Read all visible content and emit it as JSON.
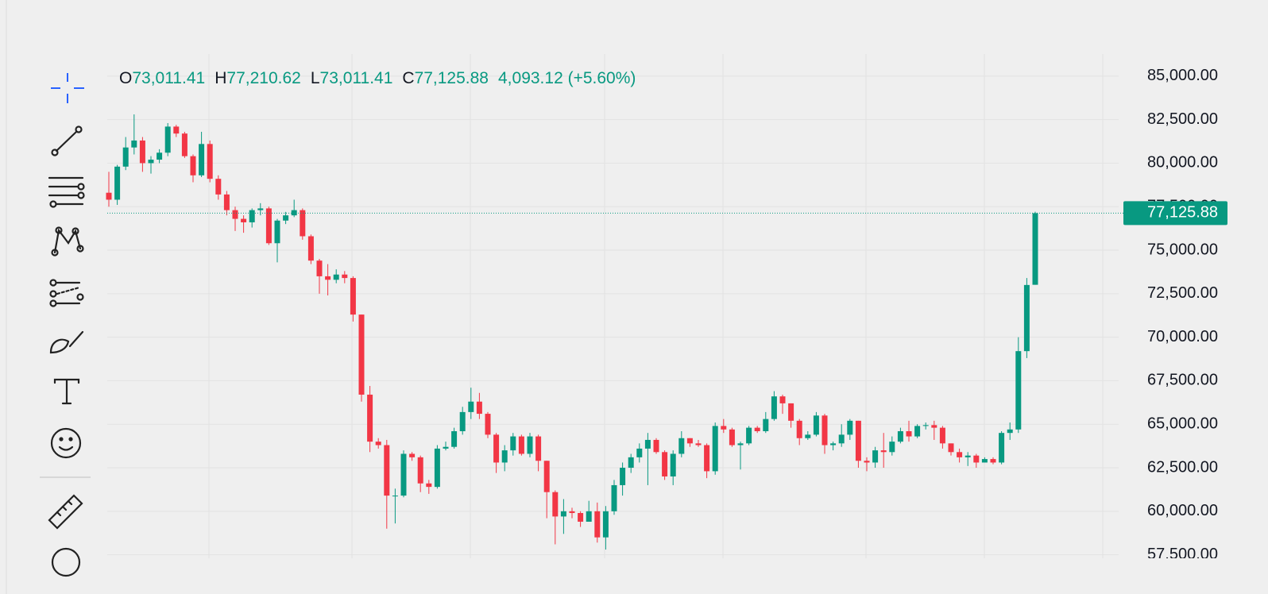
{
  "chart_data": {
    "type": "candlestick",
    "legend": {
      "open_label": "O",
      "open": "73,011.41",
      "high_label": "H",
      "high": "77,210.62",
      "low_label": "L",
      "low": "73,011.41",
      "close_label": "C",
      "close": "77,125.88",
      "change": "4,093.12 (+5.60%)"
    },
    "last_price_label": "77,125.88",
    "up_color": "#089981",
    "down_color": "#f23645",
    "ylim": [
      57300,
      86270
    ],
    "yticks": [
      {
        "value": 57500,
        "label": "57,500.00"
      },
      {
        "value": 60000,
        "label": "60,000.00"
      },
      {
        "value": 62500,
        "label": "62,500.00"
      },
      {
        "value": 65000,
        "label": "65,000.00"
      },
      {
        "value": 67500,
        "label": "67,500.00"
      },
      {
        "value": 70000,
        "label": "70,000.00"
      },
      {
        "value": 72500,
        "label": "72,500.00"
      },
      {
        "value": 75000,
        "label": "75,000.00"
      },
      {
        "value": 77500,
        "label": "77,500.00"
      },
      {
        "value": 80000,
        "label": "80,000.00"
      },
      {
        "value": 82500,
        "label": "82,500.00"
      },
      {
        "value": 85000,
        "label": "85,000.00"
      }
    ],
    "grid": true,
    "open": [
      78300,
      77900,
      79800,
      80900,
      81300,
      80000,
      80200,
      80600,
      82100,
      81700,
      80400,
      79300,
      81100,
      79100,
      78200,
      77300,
      76800,
      76600,
      77300,
      77400,
      75400,
      76700,
      77000,
      77300,
      75800,
      74400,
      73500,
      73300,
      73600,
      73400,
      71300,
      66700,
      64000,
      63800,
      60900,
      60900,
      63300,
      63100,
      61600,
      61400,
      63600,
      63700,
      64600,
      65700,
      66300,
      65600,
      64400,
      62800,
      63500,
      64300,
      63300,
      64300,
      62900,
      61100,
      59700,
      60000,
      59900,
      59400,
      60000,
      58500,
      60000,
      61500,
      62500,
      63100,
      63600,
      64100,
      63400,
      62000,
      63300,
      64200,
      63900,
      63800,
      62300,
      64900,
      64700,
      63800,
      63900,
      64800,
      64600,
      65300,
      66600,
      66200,
      65200,
      64200,
      64400,
      65500,
      63800,
      63900,
      64400,
      65200,
      62900,
      62800,
      63500,
      63400,
      64000,
      64600,
      64300,
      64900,
      64950,
      64800,
      63900,
      63400,
      63100,
      63200,
      62800,
      63000,
      62800,
      64500,
      64700,
      69200,
      73011.41
    ],
    "high": [
      79500,
      79900,
      81500,
      82800,
      81500,
      80400,
      80800,
      82300,
      82200,
      81800,
      80500,
      81800,
      81300,
      79300,
      78400,
      77500,
      77000,
      77400,
      77700,
      77500,
      76800,
      77200,
      77900,
      77400,
      75900,
      74500,
      74200,
      73900,
      73800,
      73500,
      71300,
      67200,
      64200,
      64100,
      61300,
      63500,
      63400,
      63200,
      61800,
      63800,
      64000,
      64800,
      66000,
      67100,
      66800,
      65700,
      64500,
      63800,
      64500,
      64400,
      64500,
      64400,
      62900,
      61200,
      60700,
      60200,
      60000,
      60600,
      60500,
      60300,
      61800,
      62800,
      63300,
      63900,
      64500,
      64200,
      63500,
      63500,
      64600,
      64200,
      64100,
      63900,
      65100,
      65300,
      64800,
      64000,
      64900,
      64900,
      65700,
      66900,
      66700,
      66200,
      65300,
      64600,
      65700,
      65600,
      64000,
      65000,
      65300,
      65200,
      63100,
      63700,
      64500,
      64300,
      64800,
      65200,
      65000,
      65100,
      65200,
      64900,
      63900,
      63600,
      63400,
      63300,
      63100,
      63100,
      64600,
      65100,
      70000,
      73400,
      77210.62
    ],
    "low": [
      77500,
      77600,
      79600,
      80500,
      79500,
      79400,
      80000,
      80400,
      81500,
      80300,
      78900,
      79200,
      78900,
      77900,
      77000,
      76100,
      76000,
      76300,
      77000,
      75300,
      74300,
      76500,
      76900,
      75600,
      74200,
      72500,
      72400,
      73100,
      73100,
      70900,
      66300,
      63400,
      63600,
      59000,
      59300,
      60800,
      62900,
      61100,
      61000,
      61300,
      63500,
      63600,
      64400,
      65300,
      65300,
      64200,
      62200,
      62300,
      63200,
      63200,
      63100,
      62300,
      59600,
      58100,
      58700,
      59600,
      59100,
      59400,
      58200,
      57800,
      59800,
      60900,
      62200,
      62800,
      61500,
      63300,
      61800,
      61500,
      63100,
      63700,
      63700,
      61900,
      62100,
      64500,
      63700,
      62400,
      63800,
      64500,
      64500,
      65200,
      65600,
      64800,
      63800,
      64100,
      64300,
      63300,
      63500,
      63700,
      64100,
      62500,
      62300,
      62500,
      62500,
      63200,
      63900,
      64000,
      64200,
      64700,
      64100,
      63600,
      63200,
      62800,
      62600,
      62500,
      62800,
      62700,
      62700,
      64100,
      64500,
      68800,
      73011.41
    ],
    "close": [
      77900,
      79800,
      80900,
      81300,
      80000,
      80200,
      80600,
      82100,
      81700,
      80400,
      79300,
      81100,
      79100,
      78200,
      77300,
      76800,
      76600,
      77300,
      77400,
      75400,
      76700,
      77000,
      77300,
      75800,
      74400,
      73500,
      73300,
      73600,
      73400,
      71300,
      66700,
      64000,
      63800,
      60900,
      60900,
      63300,
      63100,
      61600,
      61400,
      63600,
      63700,
      64600,
      65700,
      66300,
      65600,
      64400,
      62800,
      63500,
      64300,
      63300,
      64300,
      62900,
      61100,
      59700,
      60000,
      59900,
      59400,
      60000,
      58500,
      60000,
      61500,
      62500,
      63100,
      63600,
      64100,
      63400,
      62000,
      63300,
      64200,
      63900,
      63800,
      62300,
      64900,
      64700,
      63800,
      63900,
      64800,
      64600,
      65300,
      66600,
      66200,
      65200,
      64200,
      64400,
      65500,
      63800,
      63900,
      64400,
      65200,
      62900,
      62800,
      63500,
      63400,
      64000,
      64600,
      64300,
      64900,
      64950,
      64800,
      63900,
      63400,
      63100,
      63200,
      62800,
      63000,
      62800,
      64500,
      64700,
      69200,
      73000,
      77125.88
    ]
  }
}
